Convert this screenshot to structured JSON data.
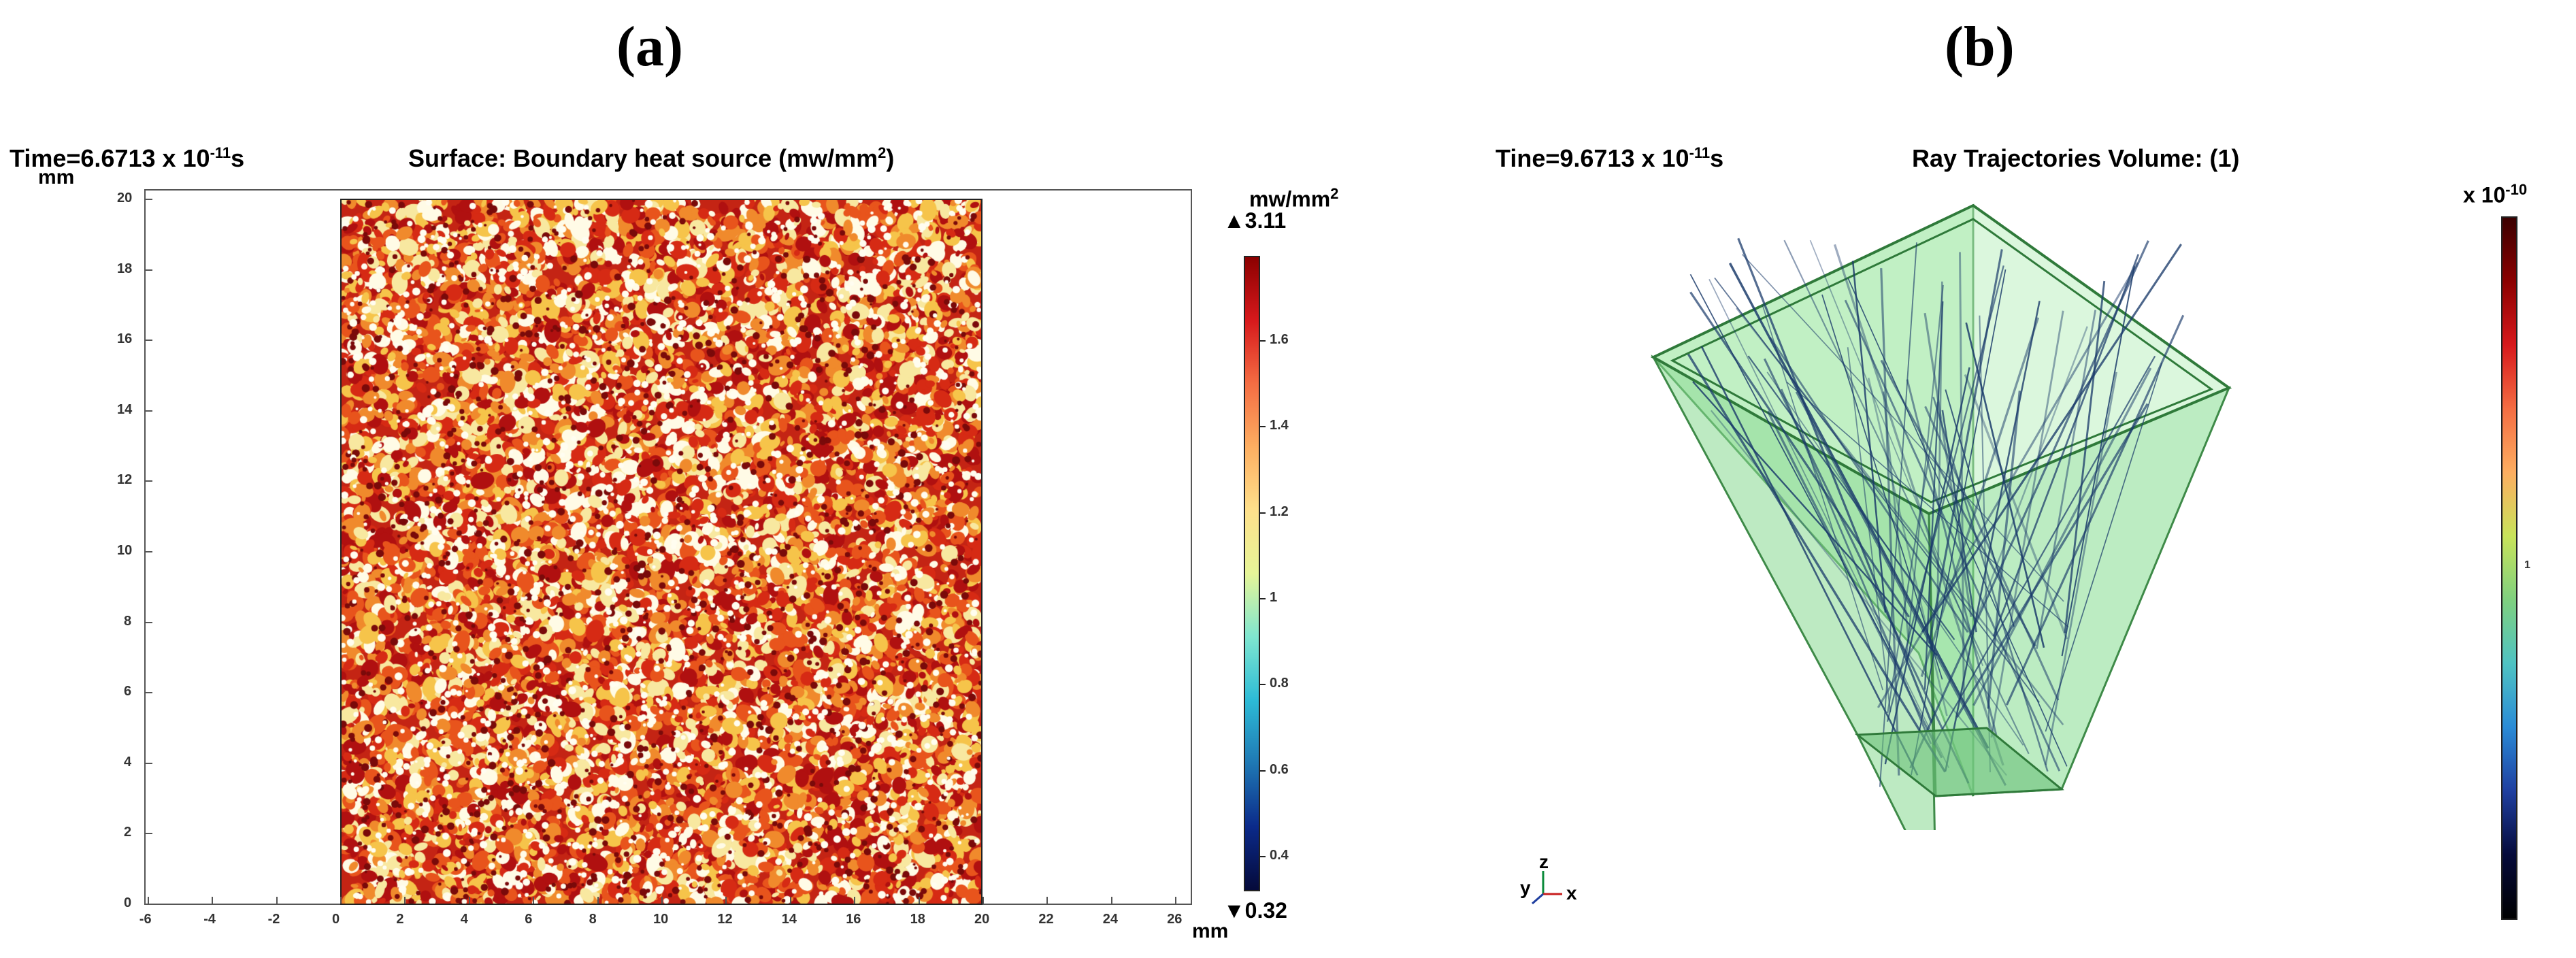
{
  "panel_a": {
    "label": "(a)",
    "time_prefix": "Time=6.6713 x 10",
    "time_exp": "-11",
    "time_suffix": "s",
    "title_prefix": "Surface: Boundary heat source (mw/mm",
    "title_exp": "2",
    "title_suffix": ")",
    "y_unit": "mm",
    "x_unit": "mm",
    "x_ticks": [
      "-6",
      "-4",
      "-2",
      "0",
      "2",
      "4",
      "6",
      "8",
      "10",
      "12",
      "14",
      "16",
      "18",
      "20",
      "22",
      "24",
      "26"
    ],
    "y_ticks": [
      "0",
      "2",
      "4",
      "6",
      "8",
      "10",
      "12",
      "14",
      "16",
      "18",
      "20"
    ],
    "colorbar": {
      "unit_prefix": "mw/mm",
      "unit_exp": "2",
      "max_label": "▲3.11",
      "min_label": "▼0.32",
      "ticks": [
        "1.6",
        "1.4",
        "1.2",
        "1",
        "0.8",
        "0.6",
        "0.4"
      ],
      "colors": [
        "#8b0000",
        "#d7191c",
        "#f46d43",
        "#fdae61",
        "#fee08b",
        "#e6f598",
        "#7fe6d0",
        "#2dbbd6",
        "#1f78b4",
        "#0b2a8a",
        "#050a3a"
      ]
    },
    "heatmap_colors": [
      "#b01010",
      "#d62a14",
      "#e8541c",
      "#f08a2c",
      "#f6c44a",
      "#f8e8a0",
      "#fffbe6"
    ]
  },
  "panel_b": {
    "label": "(b)",
    "time_prefix": "Tine=9.6713 x 10",
    "time_exp": "-11",
    "time_suffix": "s",
    "title": "Ray Trajectories Volume: (1)",
    "colorbar": {
      "unit_prefix": "x 10",
      "unit_exp": "-10",
      "mid_tick": "1",
      "colors": [
        "#3b0000",
        "#8b0000",
        "#d7191c",
        "#f46d43",
        "#fdae61",
        "#c8e35a",
        "#7fd07f",
        "#4fc3c3",
        "#2a8bd6",
        "#1f3fa0",
        "#050a3a",
        "#000000"
      ]
    },
    "box_color": "#7fd98a",
    "ray_color": "#1a3a6a",
    "axes_triad": {
      "z": "z",
      "y": "y",
      "x": "x"
    }
  }
}
